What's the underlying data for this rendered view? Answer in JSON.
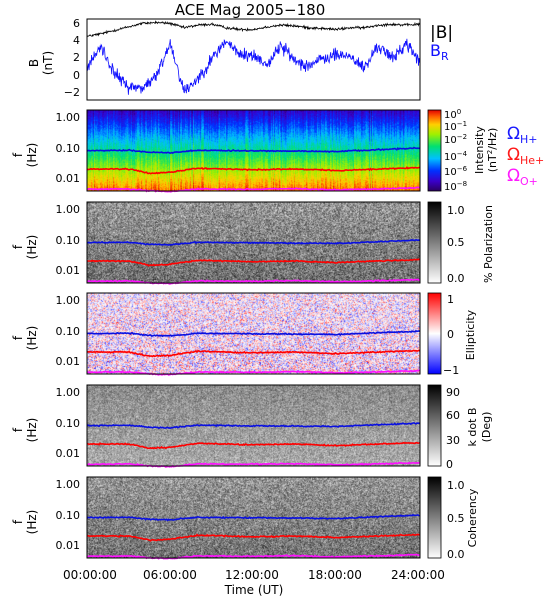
{
  "title": "ACE Mag 2005−180",
  "x_axis": {
    "label": "Time (UT)",
    "ticks": [
      "00:00:00",
      "06:00:00",
      "12:00:00",
      "18:00:00",
      "24:00:00"
    ]
  },
  "legend": {
    "B_total": "|B|",
    "B_R": "B",
    "B_R_sub": "R",
    "omega_symbol": "Ω",
    "H": "H+",
    "He": "He+",
    "O": "O+"
  },
  "colors": {
    "B_total": "#000000",
    "B_R": "#1010ff",
    "H_line": "#0a10e0",
    "He_line": "#ff0000",
    "O_line": "#ff10ff"
  },
  "chart_data": [
    {
      "type": "line",
      "panel": "B",
      "ylabel": "B",
      "yunit": "(nT)",
      "yticks": [
        "6",
        "4",
        "2",
        "0",
        "−2"
      ],
      "ylim": [
        -3,
        6.3
      ],
      "xlim_hours": [
        0,
        24
      ],
      "series": [
        {
          "name": "|B|",
          "x_hours": [
            0,
            1,
            2,
            3,
            4,
            5,
            6,
            7,
            8,
            9,
            10,
            11,
            12,
            13,
            14,
            15,
            16,
            17,
            18,
            19,
            20,
            21,
            22,
            23,
            24
          ],
          "values": [
            4.3,
            4.6,
            5.0,
            5.4,
            5.8,
            5.9,
            5.8,
            5.3,
            5.6,
            5.7,
            5.3,
            5.1,
            5.1,
            5.4,
            5.6,
            5.5,
            5.3,
            5.2,
            5.1,
            5.3,
            5.3,
            5.6,
            5.7,
            5.6,
            5.7
          ]
        },
        {
          "name": "B_R",
          "x_hours": [
            0,
            1,
            2,
            3,
            4,
            5,
            6,
            7,
            8,
            9,
            10,
            11,
            12,
            13,
            14,
            15,
            16,
            17,
            18,
            19,
            20,
            21,
            22,
            23,
            24
          ],
          "values": [
            0.6,
            3.2,
            0.0,
            -1.5,
            -1.6,
            -0.3,
            3.6,
            -2.0,
            -0.5,
            1.7,
            3.8,
            2.2,
            2.1,
            1.1,
            3.3,
            1.5,
            1.0,
            1.7,
            2.2,
            2.0,
            0.6,
            3.3,
            1.7,
            3.5,
            1.4
          ]
        }
      ]
    },
    {
      "type": "heatmap",
      "panel": "intensity",
      "ylabel": "f",
      "yunit": "(Hz)",
      "yticks": [
        "1.00",
        "0.10",
        "0.01"
      ],
      "colorbar": {
        "label": "Intensity",
        "unit_a": "(nT",
        "unit_sup": "2",
        "unit_b": "/Hz)",
        "ticks": [
          "10",
          "10",
          "10",
          "10",
          "10",
          "10"
        ],
        "exponents": [
          "0",
          "−1",
          "−2",
          "−4",
          "−6",
          "−8"
        ]
      }
    },
    {
      "type": "heatmap",
      "panel": "polarization",
      "ylabel": "f",
      "yunit": "(Hz)",
      "yticks": [
        "1.00",
        "0.10",
        "0.01"
      ],
      "colorbar": {
        "label": "% Polarization",
        "ticks": [
          "1.0",
          "0.5",
          "0.0"
        ]
      }
    },
    {
      "type": "heatmap",
      "panel": "ellipticity",
      "ylabel": "f",
      "yunit": "(Hz)",
      "yticks": [
        "1.00",
        "0.10",
        "0.01"
      ],
      "colorbar": {
        "label": "Ellipticity",
        "ticks": [
          "1",
          "0",
          "−1"
        ]
      }
    },
    {
      "type": "heatmap",
      "panel": "k_dot_B",
      "ylabel": "f",
      "yunit": "(Hz)",
      "yticks": [
        "1.00",
        "0.10",
        "0.01"
      ],
      "colorbar": {
        "label": "k dot B",
        "unit": "(Deg)",
        "ticks": [
          "90",
          "60",
          "30",
          "0"
        ]
      }
    },
    {
      "type": "heatmap",
      "panel": "coherency",
      "ylabel": "f",
      "yunit": "(Hz)",
      "yticks": [
        "1.00",
        "0.10",
        "0.01"
      ],
      "colorbar": {
        "label": "Coherency",
        "ticks": [
          "1.0",
          "0.5",
          "0.0"
        ]
      }
    },
    {
      "type": "line",
      "panel": "gyrofrequencies",
      "ylim_log10_Hz": [
        -2.4,
        0.1
      ],
      "series": [
        {
          "name": "H+",
          "x_hours": [
            0,
            3,
            4.5,
            6,
            8,
            12,
            15,
            18,
            24
          ],
          "values_Hz": [
            0.07,
            0.072,
            0.062,
            0.06,
            0.072,
            0.069,
            0.068,
            0.066,
            0.084
          ]
        },
        {
          "name": "He+",
          "x_hours": [
            0,
            3,
            4.5,
            6,
            8,
            12,
            15,
            18,
            24
          ],
          "values_Hz": [
            0.019,
            0.019,
            0.014,
            0.015,
            0.02,
            0.018,
            0.019,
            0.017,
            0.021
          ]
        },
        {
          "name": "O+",
          "x_hours": [
            0,
            3,
            4.5,
            6,
            8,
            12,
            15,
            18,
            24
          ],
          "values_Hz": [
            0.0045,
            0.0046,
            0.004,
            0.0038,
            0.0046,
            0.0045,
            0.0047,
            0.0043,
            0.005
          ]
        }
      ]
    }
  ]
}
